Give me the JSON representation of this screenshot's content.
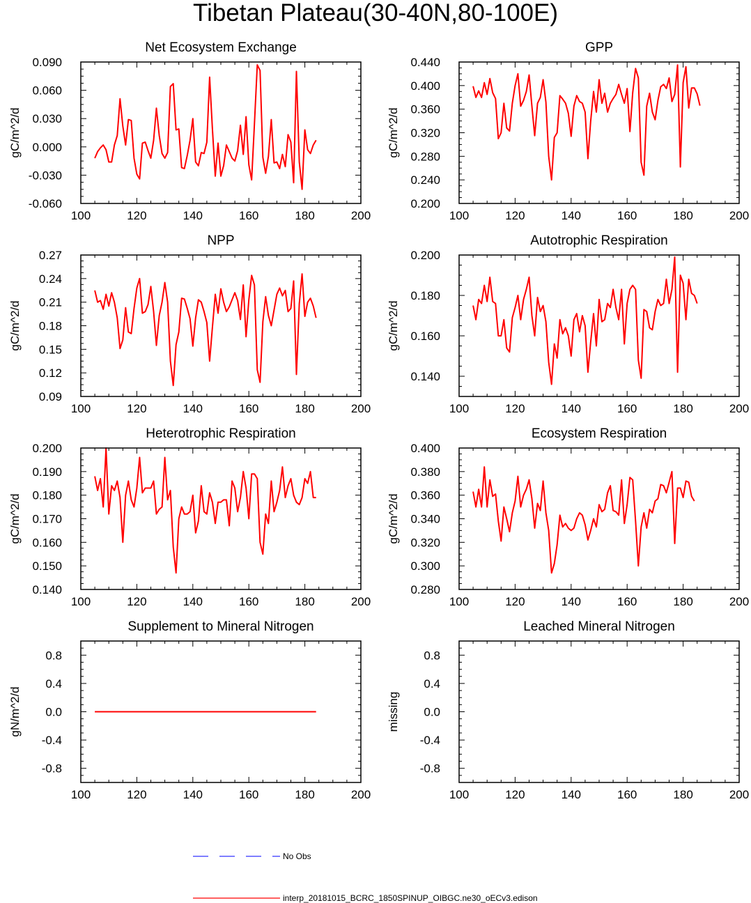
{
  "figure": {
    "title": "Tibetan Plateau(30-40N,80-100E)",
    "series_color": "#ff0000",
    "obs_color": "#3333ff",
    "legend": [
      {
        "label": "No Obs",
        "style": "dashed",
        "color": "#3333ff"
      },
      {
        "label": "interp_20181015_BCRC_1850SPINUP_OIBGC.ne30_oECv3.edison",
        "style": "solid",
        "color": "#ff0000"
      }
    ]
  },
  "chart_data": [
    {
      "type": "line",
      "title": "Net Ecosystem Exchange",
      "ylabel": "gC/m^2/d",
      "xlim": [
        100,
        200
      ],
      "ylim": [
        -0.06,
        0.09
      ],
      "xticks": [
        100,
        120,
        140,
        160,
        180,
        200
      ],
      "xtick_labels": [
        "100",
        "120",
        "140",
        "160",
        "180",
        "200"
      ],
      "yticks": [
        -0.06,
        -0.03,
        0.0,
        0.03,
        0.06,
        0.09
      ],
      "ytick_labels": [
        "-0.060",
        "-0.030",
        "0.000",
        "0.030",
        "0.060",
        "0.090"
      ],
      "x_start": 105,
      "values": [
        -0.012,
        -0.005,
        -0.001,
        0.002,
        -0.003,
        -0.016,
        -0.016,
        0.002,
        0.012,
        0.051,
        0.022,
        0.002,
        0.029,
        0.028,
        -0.012,
        -0.029,
        -0.034,
        0.004,
        0.005,
        -0.004,
        -0.012,
        0.007,
        0.041,
        0.012,
        -0.007,
        -0.012,
        -0.006,
        0.064,
        0.067,
        0.018,
        0.019,
        -0.022,
        -0.023,
        -0.009,
        0.007,
        0.03,
        -0.016,
        -0.02,
        -0.006,
        -0.007,
        0.005,
        0.074,
        0.019,
        -0.031,
        0.004,
        -0.031,
        -0.02,
        0.002,
        -0.005,
        -0.012,
        -0.015,
        -0.004,
        0.023,
        -0.008,
        0.032,
        -0.019,
        -0.035,
        0.024,
        0.087,
        0.081,
        -0.011,
        -0.028,
        -0.01,
        0.029,
        -0.017,
        -0.016,
        -0.023,
        -0.008,
        -0.021,
        0.013,
        0.005,
        -0.038,
        0.08,
        -0.016,
        -0.045,
        0.018,
        -0.003,
        -0.007,
        0.002,
        0.007
      ]
    },
    {
      "type": "line",
      "title": "GPP",
      "ylabel": "gC/m^2/d",
      "xlim": [
        100,
        200
      ],
      "ylim": [
        0.2,
        0.44
      ],
      "xticks": [
        100,
        120,
        140,
        160,
        180,
        200
      ],
      "xtick_labels": [
        "100",
        "120",
        "140",
        "160",
        "180",
        "200"
      ],
      "yticks": [
        0.2,
        0.24,
        0.28,
        0.32,
        0.36,
        0.4,
        0.44
      ],
      "ytick_labels": [
        "0.200",
        "0.240",
        "0.280",
        "0.320",
        "0.360",
        "0.400",
        "0.440"
      ],
      "x_start": 105,
      "values": [
        0.399,
        0.38,
        0.391,
        0.38,
        0.405,
        0.385,
        0.412,
        0.388,
        0.378,
        0.31,
        0.32,
        0.37,
        0.328,
        0.323,
        0.37,
        0.4,
        0.42,
        0.365,
        0.375,
        0.39,
        0.418,
        0.365,
        0.315,
        0.37,
        0.38,
        0.41,
        0.372,
        0.28,
        0.24,
        0.312,
        0.32,
        0.383,
        0.377,
        0.37,
        0.353,
        0.314,
        0.365,
        0.383,
        0.373,
        0.37,
        0.355,
        0.276,
        0.34,
        0.39,
        0.355,
        0.41,
        0.37,
        0.387,
        0.355,
        0.37,
        0.378,
        0.385,
        0.402,
        0.385,
        0.37,
        0.395,
        0.322,
        0.388,
        0.429,
        0.413,
        0.27,
        0.248,
        0.365,
        0.387,
        0.355,
        0.342,
        0.375,
        0.398,
        0.402,
        0.395,
        0.413,
        0.373,
        0.385,
        0.435,
        0.262,
        0.405,
        0.432,
        0.362,
        0.396,
        0.396,
        0.386,
        0.366
      ]
    },
    {
      "type": "line",
      "title": "NPP",
      "ylabel": "gC/m^2/d",
      "xlim": [
        100,
        200
      ],
      "ylim": [
        0.09,
        0.27
      ],
      "xticks": [
        100,
        120,
        140,
        160,
        180,
        200
      ],
      "xtick_labels": [
        "100",
        "120",
        "140",
        "160",
        "180",
        "200"
      ],
      "yticks": [
        0.09,
        0.12,
        0.15,
        0.18,
        0.21,
        0.24,
        0.27
      ],
      "ytick_labels": [
        "0.09",
        "0.12",
        "0.15",
        "0.18",
        "0.21",
        "0.24",
        "0.27"
      ],
      "x_start": 105,
      "values": [
        0.225,
        0.21,
        0.212,
        0.201,
        0.22,
        0.205,
        0.222,
        0.21,
        0.19,
        0.151,
        0.162,
        0.203,
        0.172,
        0.17,
        0.202,
        0.228,
        0.24,
        0.196,
        0.198,
        0.207,
        0.23,
        0.198,
        0.155,
        0.193,
        0.21,
        0.235,
        0.21,
        0.135,
        0.104,
        0.156,
        0.172,
        0.215,
        0.214,
        0.202,
        0.189,
        0.154,
        0.19,
        0.213,
        0.21,
        0.198,
        0.184,
        0.135,
        0.178,
        0.22,
        0.196,
        0.227,
        0.21,
        0.198,
        0.204,
        0.213,
        0.222,
        0.212,
        0.188,
        0.232,
        0.166,
        0.213,
        0.244,
        0.232,
        0.124,
        0.108,
        0.185,
        0.217,
        0.193,
        0.18,
        0.2,
        0.22,
        0.228,
        0.218,
        0.225,
        0.198,
        0.202,
        0.237,
        0.118,
        0.208,
        0.246,
        0.192,
        0.21,
        0.215,
        0.205,
        0.19
      ]
    },
    {
      "type": "line",
      "title": "Autotrophic Respiration",
      "ylabel": "gC/m^2/d",
      "xlim": [
        100,
        200
      ],
      "ylim": [
        0.13,
        0.2
      ],
      "xticks": [
        100,
        120,
        140,
        160,
        180,
        200
      ],
      "xtick_labels": [
        "100",
        "120",
        "140",
        "160",
        "180",
        "200"
      ],
      "yticks": [
        0.14,
        0.16,
        0.18,
        0.2
      ],
      "ytick_labels": [
        "0.140",
        "0.160",
        "0.180",
        "0.200"
      ],
      "x_start": 105,
      "values": [
        0.175,
        0.168,
        0.178,
        0.176,
        0.185,
        0.177,
        0.189,
        0.177,
        0.176,
        0.16,
        0.16,
        0.168,
        0.154,
        0.152,
        0.169,
        0.174,
        0.18,
        0.168,
        0.178,
        0.183,
        0.189,
        0.17,
        0.16,
        0.179,
        0.172,
        0.175,
        0.167,
        0.147,
        0.136,
        0.156,
        0.149,
        0.168,
        0.161,
        0.164,
        0.16,
        0.15,
        0.168,
        0.171,
        0.162,
        0.17,
        0.165,
        0.142,
        0.157,
        0.171,
        0.155,
        0.178,
        0.167,
        0.168,
        0.176,
        0.174,
        0.183,
        0.174,
        0.168,
        0.183,
        0.156,
        0.176,
        0.183,
        0.185,
        0.183,
        0.148,
        0.139,
        0.173,
        0.172,
        0.164,
        0.163,
        0.172,
        0.178,
        0.175,
        0.176,
        0.188,
        0.176,
        0.183,
        0.199,
        0.142,
        0.19,
        0.186,
        0.168,
        0.188,
        0.181,
        0.18,
        0.176
      ]
    },
    {
      "type": "line",
      "title": "Heterotrophic Respiration",
      "ylabel": "gC/m^2/d",
      "xlim": [
        100,
        200
      ],
      "ylim": [
        0.14,
        0.2
      ],
      "xticks": [
        100,
        120,
        140,
        160,
        180,
        200
      ],
      "xtick_labels": [
        "100",
        "120",
        "140",
        "160",
        "180",
        "200"
      ],
      "yticks": [
        0.14,
        0.15,
        0.16,
        0.17,
        0.18,
        0.19,
        0.2
      ],
      "ytick_labels": [
        "0.140",
        "0.150",
        "0.160",
        "0.170",
        "0.180",
        "0.190",
        "0.200"
      ],
      "x_start": 105,
      "values": [
        0.188,
        0.182,
        0.187,
        0.175,
        0.2,
        0.172,
        0.184,
        0.182,
        0.186,
        0.179,
        0.16,
        0.18,
        0.186,
        0.178,
        0.175,
        0.183,
        0.196,
        0.181,
        0.183,
        0.183,
        0.183,
        0.186,
        0.172,
        0.174,
        0.175,
        0.196,
        0.178,
        0.182,
        0.158,
        0.147,
        0.17,
        0.175,
        0.172,
        0.172,
        0.173,
        0.18,
        0.164,
        0.169,
        0.184,
        0.173,
        0.172,
        0.181,
        0.177,
        0.168,
        0.177,
        0.177,
        0.178,
        0.178,
        0.167,
        0.186,
        0.183,
        0.173,
        0.179,
        0.19,
        0.183,
        0.17,
        0.189,
        0.189,
        0.187,
        0.16,
        0.155,
        0.172,
        0.168,
        0.186,
        0.173,
        0.177,
        0.182,
        0.192,
        0.179,
        0.184,
        0.187,
        0.18,
        0.177,
        0.176,
        0.179,
        0.187,
        0.185,
        0.19,
        0.179,
        0.179
      ]
    },
    {
      "type": "line",
      "title": "Ecosystem Respiration",
      "ylabel": "gC/m^2/d",
      "xlim": [
        100,
        200
      ],
      "ylim": [
        0.28,
        0.4
      ],
      "xticks": [
        100,
        120,
        140,
        160,
        180,
        200
      ],
      "xtick_labels": [
        "100",
        "120",
        "140",
        "160",
        "180",
        "200"
      ],
      "yticks": [
        0.28,
        0.3,
        0.32,
        0.34,
        0.36,
        0.38,
        0.4
      ],
      "ytick_labels": [
        "0.280",
        "0.300",
        "0.320",
        "0.340",
        "0.360",
        "0.380",
        "0.400"
      ],
      "x_start": 105,
      "values": [
        0.363,
        0.35,
        0.365,
        0.35,
        0.384,
        0.35,
        0.373,
        0.359,
        0.361,
        0.338,
        0.321,
        0.35,
        0.34,
        0.329,
        0.345,
        0.355,
        0.376,
        0.35,
        0.36,
        0.365,
        0.373,
        0.357,
        0.332,
        0.353,
        0.347,
        0.372,
        0.345,
        0.33,
        0.294,
        0.302,
        0.318,
        0.343,
        0.333,
        0.336,
        0.332,
        0.33,
        0.332,
        0.34,
        0.345,
        0.343,
        0.335,
        0.322,
        0.33,
        0.34,
        0.333,
        0.352,
        0.346,
        0.348,
        0.362,
        0.368,
        0.347,
        0.346,
        0.343,
        0.373,
        0.336,
        0.352,
        0.375,
        0.373,
        0.338,
        0.3,
        0.333,
        0.345,
        0.332,
        0.348,
        0.345,
        0.355,
        0.357,
        0.369,
        0.368,
        0.362,
        0.371,
        0.38,
        0.319,
        0.366,
        0.366,
        0.358,
        0.372,
        0.371,
        0.359,
        0.355
      ]
    },
    {
      "type": "line",
      "title": "Supplement to Mineral Nitrogen",
      "ylabel": "gN/m^2/d",
      "xlim": [
        100,
        200
      ],
      "ylim": [
        -1.0,
        1.0
      ],
      "xticks": [
        100,
        120,
        140,
        160,
        180,
        200
      ],
      "xtick_labels": [
        "100",
        "120",
        "140",
        "160",
        "180",
        "200"
      ],
      "yticks": [
        -0.8,
        -0.4,
        0.0,
        0.4,
        0.8
      ],
      "ytick_labels": [
        "-0.8",
        "-0.4",
        "0.0",
        "0.4",
        "0.8"
      ],
      "x_start": 105,
      "values": [
        0,
        0,
        0,
        0,
        0,
        0,
        0,
        0,
        0,
        0,
        0,
        0,
        0,
        0,
        0,
        0,
        0,
        0,
        0,
        0,
        0,
        0,
        0,
        0,
        0,
        0,
        0,
        0,
        0,
        0,
        0,
        0,
        0,
        0,
        0,
        0,
        0,
        0,
        0,
        0,
        0,
        0,
        0,
        0,
        0,
        0,
        0,
        0,
        0,
        0,
        0,
        0,
        0,
        0,
        0,
        0,
        0,
        0,
        0,
        0,
        0,
        0,
        0,
        0,
        0,
        0,
        0,
        0,
        0,
        0,
        0,
        0,
        0,
        0,
        0,
        0,
        0,
        0,
        0,
        0
      ]
    },
    {
      "type": "line",
      "title": "Leached Mineral Nitrogen",
      "ylabel": "missing",
      "xlim": [
        100,
        200
      ],
      "ylim": [
        -1.0,
        1.0
      ],
      "xticks": [
        100,
        120,
        140,
        160,
        180,
        200
      ],
      "xtick_labels": [
        "100",
        "120",
        "140",
        "160",
        "180",
        "200"
      ],
      "yticks": [
        -0.8,
        -0.4,
        0.0,
        0.4,
        0.8
      ],
      "ytick_labels": [
        "-0.8",
        "-0.4",
        "0.0",
        "0.4",
        "0.8"
      ],
      "x_start": 105,
      "values": []
    }
  ]
}
